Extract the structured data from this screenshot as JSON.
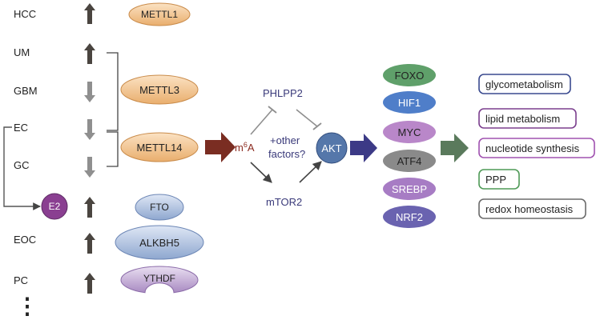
{
  "cancers": [
    {
      "label": "HCC",
      "direction": "up"
    },
    {
      "label": "UM",
      "direction": "up"
    },
    {
      "label": "GBM",
      "direction": "down"
    },
    {
      "label": "EC",
      "direction": "down"
    },
    {
      "label": "GC",
      "direction": "down"
    },
    {
      "label": "EOC",
      "direction": "up"
    },
    {
      "label": "PC",
      "direction": "up"
    }
  ],
  "e2": {
    "label": "E2",
    "direction": "up"
  },
  "regulators": [
    {
      "label": "METTL1",
      "color": "#f0c48f"
    },
    {
      "label": "METTL3",
      "color": "#f0c48f"
    },
    {
      "label": "METTL14",
      "color": "#f0c48f"
    },
    {
      "label": "FTO",
      "color": "#b7c8e8"
    },
    {
      "label": "ALKBH5",
      "color": "#b7c8e8"
    },
    {
      "label": "YTHDF",
      "color": "#c9b5d9"
    }
  ],
  "m6a": {
    "base": "m",
    "sup": "6",
    "rest": "A",
    "color": "#8b2a1f"
  },
  "pathway": {
    "phlpp2": "PHLPP2",
    "other": [
      "+other",
      "factors?"
    ],
    "mtor2": "mTOR2",
    "akt": "AKT"
  },
  "effectors": [
    {
      "label": "FOXO",
      "color": "#5fa06a"
    },
    {
      "label": "HIF1",
      "color": "#4f7ec9"
    },
    {
      "label": "MYC",
      "color": "#b987c9"
    },
    {
      "label": "ATF4",
      "color": "#8a8a8a"
    },
    {
      "label": "SREBP",
      "color": "#a77cc4"
    },
    {
      "label": "NRF2",
      "color": "#6a63b0"
    }
  ],
  "outcomes": [
    {
      "label": "glycometabolism",
      "color": "#3a4a8f"
    },
    {
      "label": "lipid metabolism",
      "color": "#7b3f8e"
    },
    {
      "label": "nucleotide synthesis",
      "color": "#a052b0"
    },
    {
      "label": "PPP",
      "color": "#4f9a57"
    },
    {
      "label": "redox homeostasis",
      "color": "#6b6b6b"
    }
  ],
  "colors": {
    "arrow_up": "#4a4540",
    "arrow_down": "#8f8f8f",
    "big_arrow_m6a": "#7a2d22",
    "big_arrow_akt": "#3c3a86",
    "big_arrow_out": "#5a7a5c",
    "akt_fill": "#5577aa",
    "e2_fill": "#8a3f91",
    "line": "#555555"
  },
  "ellipsis": "⋮"
}
